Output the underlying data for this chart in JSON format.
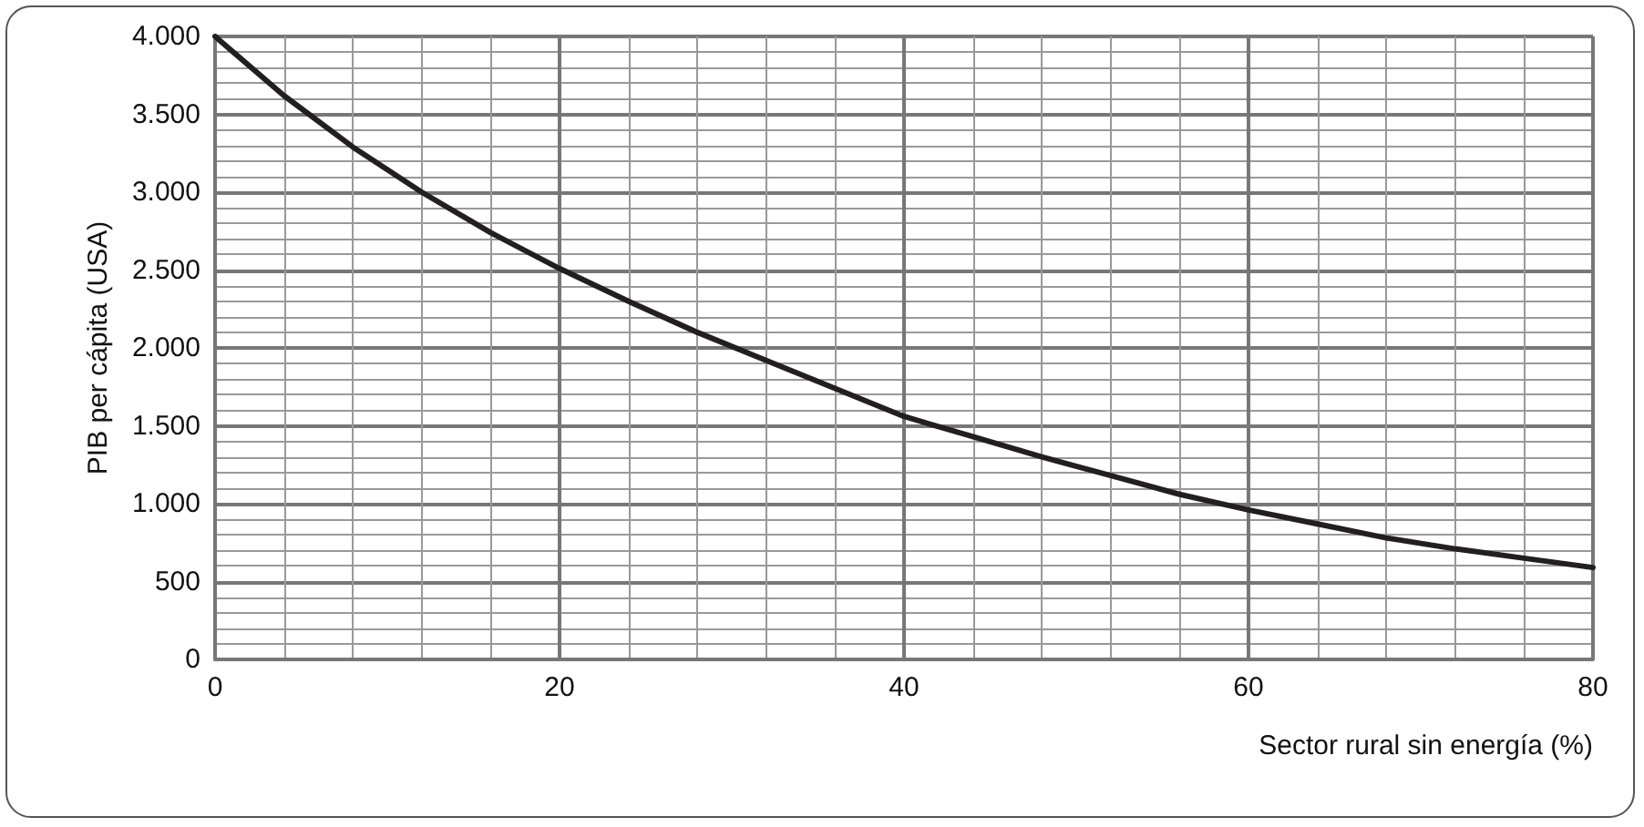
{
  "chart_data": {
    "type": "line",
    "xlabel": "Sector rural sin energía (%)",
    "ylabel": "PIB per cápita (USA)",
    "x": [
      0,
      4,
      8,
      12,
      16,
      20,
      24,
      28,
      32,
      36,
      40,
      44,
      48,
      52,
      56,
      60,
      64,
      68,
      72,
      76,
      80
    ],
    "series": [
      {
        "color": "#231f20",
        "values": [
          4000,
          3620,
          3290,
          3000,
          2740,
          2510,
          2300,
          2100,
          1920,
          1740,
          1560,
          1430,
          1300,
          1180,
          1060,
          960,
          870,
          780,
          710,
          650,
          590
        ]
      }
    ],
    "xlim": [
      0,
      80
    ],
    "xticks": [
      0,
      20,
      40,
      60,
      80
    ],
    "ylim": [
      0,
      4000
    ],
    "yticks": [
      0,
      {
        "value": 500,
        "label": "500"
      },
      {
        "value": 1000,
        "label": "1.000"
      },
      {
        "value": 1500,
        "label": "1.500"
      },
      {
        "value": 2000,
        "label": "2.000"
      },
      {
        "value": 2500,
        "label": "2.500"
      },
      {
        "value": 3000,
        "label": "3.000"
      },
      {
        "value": 3500,
        "label": "3.500"
      },
      {
        "value": 4000,
        "label": "4.000"
      }
    ],
    "grid": true,
    "marker": "none",
    "line_style": "solid"
  }
}
